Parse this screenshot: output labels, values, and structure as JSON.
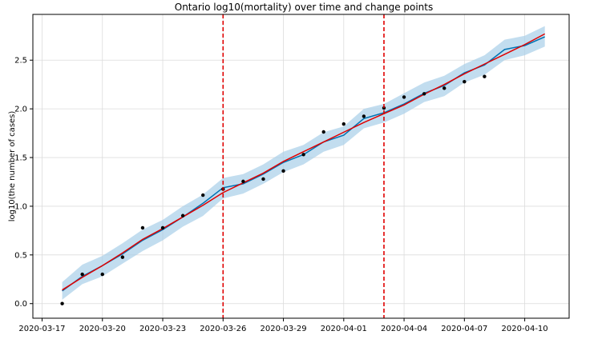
{
  "chart_data": {
    "type": "line",
    "title": "Ontario log10(mortality) over time and change points",
    "xlabel": "",
    "ylabel": "log10(the number of cases)",
    "grid": true,
    "x_range": [
      "2020-03-16T13:00",
      "2020-04-12T05:00"
    ],
    "ylim": [
      -0.15,
      2.97
    ],
    "x_ticks": [
      "2020-03-17",
      "2020-03-20",
      "2020-03-23",
      "2020-03-26",
      "2020-03-29",
      "2020-04-01",
      "2020-04-04",
      "2020-04-07",
      "2020-04-10"
    ],
    "y_ticks": [
      0.0,
      0.5,
      1.0,
      1.5,
      2.0,
      2.5
    ],
    "y_tick_labels": [
      "0.0",
      "0.5",
      "1.0",
      "1.5",
      "2.0",
      "2.5"
    ],
    "dates": [
      "2020-03-18",
      "2020-03-19",
      "2020-03-20",
      "2020-03-21",
      "2020-03-22",
      "2020-03-23",
      "2020-03-24",
      "2020-03-25",
      "2020-03-26",
      "2020-03-27",
      "2020-03-28",
      "2020-03-29",
      "2020-03-30",
      "2020-03-31",
      "2020-04-01",
      "2020-04-02",
      "2020-04-03",
      "2020-04-04",
      "2020-04-05",
      "2020-04-06",
      "2020-04-07",
      "2020-04-08",
      "2020-04-09",
      "2020-04-10",
      "2020-04-11"
    ],
    "series": [
      {
        "kind": "scatter",
        "color": "#000000",
        "dates": [
          "2020-03-18",
          "2020-03-19",
          "2020-03-20",
          "2020-03-21",
          "2020-03-22",
          "2020-03-23",
          "2020-03-24",
          "2020-03-25",
          "2020-03-26",
          "2020-03-27",
          "2020-03-28",
          "2020-03-29",
          "2020-03-30",
          "2020-03-31",
          "2020-04-01",
          "2020-04-02",
          "2020-04-03",
          "2020-04-04",
          "2020-04-05",
          "2020-04-06",
          "2020-04-07",
          "2020-04-08"
        ],
        "values": [
          0.0,
          0.301,
          0.301,
          0.477,
          0.778,
          0.778,
          0.903,
          1.114,
          1.176,
          1.255,
          1.279,
          1.362,
          1.531,
          1.763,
          1.845,
          1.924,
          2.009,
          2.121,
          2.155,
          2.212,
          2.279,
          2.332
        ]
      },
      {
        "kind": "line",
        "color": "#0072b2",
        "values": [
          0.13,
          0.28,
          0.39,
          0.51,
          0.65,
          0.76,
          0.89,
          1.03,
          1.19,
          1.23,
          1.33,
          1.45,
          1.53,
          1.66,
          1.73,
          1.9,
          1.96,
          2.05,
          2.16,
          2.24,
          2.37,
          2.45,
          2.61,
          2.65,
          2.74
        ]
      },
      {
        "kind": "line",
        "color": "#e00000",
        "values": [
          0.14,
          0.27,
          0.39,
          0.52,
          0.66,
          0.77,
          0.89,
          1.01,
          1.14,
          1.24,
          1.34,
          1.46,
          1.56,
          1.66,
          1.76,
          1.86,
          1.95,
          2.04,
          2.15,
          2.25,
          2.36,
          2.46,
          2.56,
          2.66,
          2.77
        ]
      }
    ],
    "band": {
      "color": "#a8cfe8",
      "lower": [
        0.04,
        0.2,
        0.28,
        0.41,
        0.54,
        0.65,
        0.79,
        0.9,
        1.08,
        1.13,
        1.23,
        1.35,
        1.43,
        1.56,
        1.63,
        1.8,
        1.86,
        1.95,
        2.07,
        2.13,
        2.27,
        2.35,
        2.5,
        2.55,
        2.64
      ],
      "upper": [
        0.22,
        0.4,
        0.49,
        0.62,
        0.76,
        0.86,
        1.0,
        1.12,
        1.29,
        1.33,
        1.43,
        1.56,
        1.63,
        1.76,
        1.82,
        2.0,
        2.05,
        2.16,
        2.27,
        2.34,
        2.46,
        2.55,
        2.71,
        2.75,
        2.85
      ]
    },
    "change_points": [
      "2020-03-26",
      "2020-04-03"
    ],
    "change_point_color": "#e00000",
    "grid_color": "#dcdcdc"
  }
}
